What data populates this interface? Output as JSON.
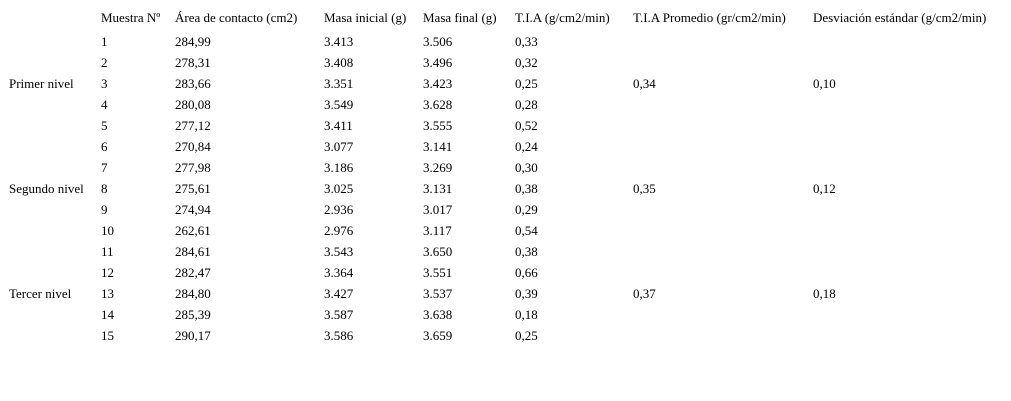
{
  "headers": [
    "Muestra Nº",
    "Área de contacto (cm2)",
    "Masa inicial (g)",
    "Masa final (g)",
    "T.I.A (g/cm2/min)",
    "T.I.A Promedio (gr/cm2/min)",
    "Desviación estándar (g/cm2/min)"
  ],
  "rows": [
    {
      "n": "1",
      "area": "284,99",
      "mi": "3.413",
      "mf": "3.506",
      "tia": "0,33"
    },
    {
      "n": "2",
      "area": "278,31",
      "mi": "3.408",
      "mf": "3.496",
      "tia": "0,32"
    },
    {
      "n": "3",
      "area": "283,66",
      "mi": "3.351",
      "mf": "3.423",
      "tia": "0,25"
    },
    {
      "n": "4",
      "area": "280,08",
      "mi": "3.549",
      "mf": "3.628",
      "tia": "0,28"
    },
    {
      "n": "5",
      "area": "277,12",
      "mi": "3.411",
      "mf": "3.555",
      "tia": "0,52"
    },
    {
      "n": "6",
      "area": "270,84",
      "mi": "3.077",
      "mf": "3.141",
      "tia": "0,24"
    },
    {
      "n": "7",
      "area": "277,98",
      "mi": "3.186",
      "mf": "3.269",
      "tia": "0,30"
    },
    {
      "n": "8",
      "area": "275,61",
      "mi": "3.025",
      "mf": "3.131",
      "tia": "0,38"
    },
    {
      "n": "9",
      "area": "274,94",
      "mi": "2.936",
      "mf": "3.017",
      "tia": "0,29"
    },
    {
      "n": "10",
      "area": "262,61",
      "mi": "2.976",
      "mf": "3.117",
      "tia": "0,54"
    },
    {
      "n": "11",
      "area": "284,61",
      "mi": "3.543",
      "mf": "3.650",
      "tia": "0,38"
    },
    {
      "n": "12",
      "area": "282,47",
      "mi": "3.364",
      "mf": "3.551",
      "tia": "0,66"
    },
    {
      "n": "13",
      "area": "284,80",
      "mi": "3.427",
      "mf": "3.537",
      "tia": "0,39"
    },
    {
      "n": "14",
      "area": "285,39",
      "mi": "3.587",
      "mf": "3.638",
      "tia": "0,18"
    },
    {
      "n": "15",
      "area": "290,17",
      "mi": "3.586",
      "mf": "3.659",
      "tia": "0,25"
    }
  ],
  "groups": [
    {
      "label": "Primer nivel",
      "row": 3,
      "promedio": "0,34",
      "desviacion": "0,10"
    },
    {
      "label": "Segundo nivel",
      "row": 8,
      "promedio": "0,35",
      "desviacion": "0,12"
    },
    {
      "label": "Tercer nivel",
      "row": 13,
      "promedio": "0,37",
      "desviacion": "0,18"
    }
  ]
}
